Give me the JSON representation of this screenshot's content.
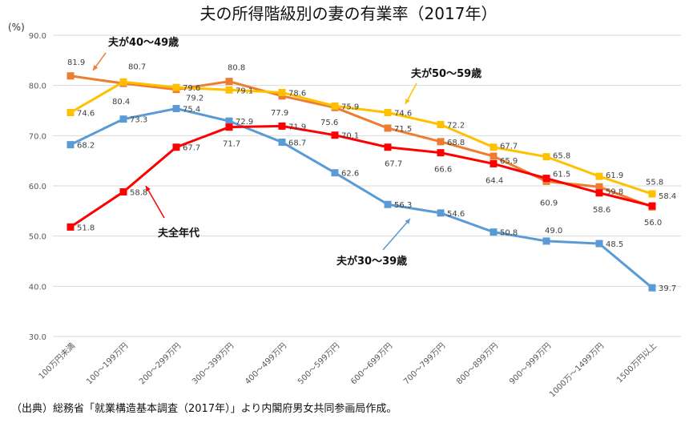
{
  "chart_data": {
    "type": "line",
    "title": "夫の所得階級別の妻の有業率（2017年）",
    "ylabel": "(%)",
    "ylim": [
      30,
      90
    ],
    "yticks": [
      "30.0",
      "40.0",
      "50.0",
      "60.0",
      "70.0",
      "80.0",
      "90.0"
    ],
    "grid": true,
    "categories": [
      "100万円未満",
      "100～199万円",
      "200～299万円",
      "300～399万円",
      "400～499万円",
      "500～599万円",
      "600～699万円",
      "700～799万円",
      "800～899万円",
      "900～999万円",
      "1000万～1499万円",
      "1500万円以上"
    ],
    "series": [
      {
        "name": "夫が30～39歳",
        "color": "#5b9bd5",
        "values": [
          68.2,
          73.3,
          75.4,
          72.9,
          68.7,
          62.6,
          56.3,
          54.6,
          50.8,
          49.0,
          48.5,
          39.7
        ]
      },
      {
        "name": "夫が40～49歳",
        "color": "#ed7d31",
        "values": [
          81.9,
          80.4,
          79.2,
          80.8,
          77.9,
          75.6,
          71.5,
          68.8,
          65.9,
          60.9,
          59.8,
          55.8
        ]
      },
      {
        "name": "夫が50～59歳",
        "color": "#ffc000",
        "values": [
          74.6,
          80.7,
          79.6,
          79.1,
          78.6,
          75.9,
          74.6,
          72.2,
          67.7,
          65.8,
          61.9,
          58.4
        ]
      },
      {
        "name": "夫全年代",
        "color": "#ff0000",
        "values": [
          51.8,
          58.8,
          67.7,
          71.7,
          71.9,
          70.1,
          67.7,
          66.6,
          64.4,
          61.5,
          58.6,
          56.0
        ]
      }
    ]
  },
  "source_note": "（出典）総務省「就業構造基本調査（2017年）」より内閣府男女共同参画局作成。"
}
